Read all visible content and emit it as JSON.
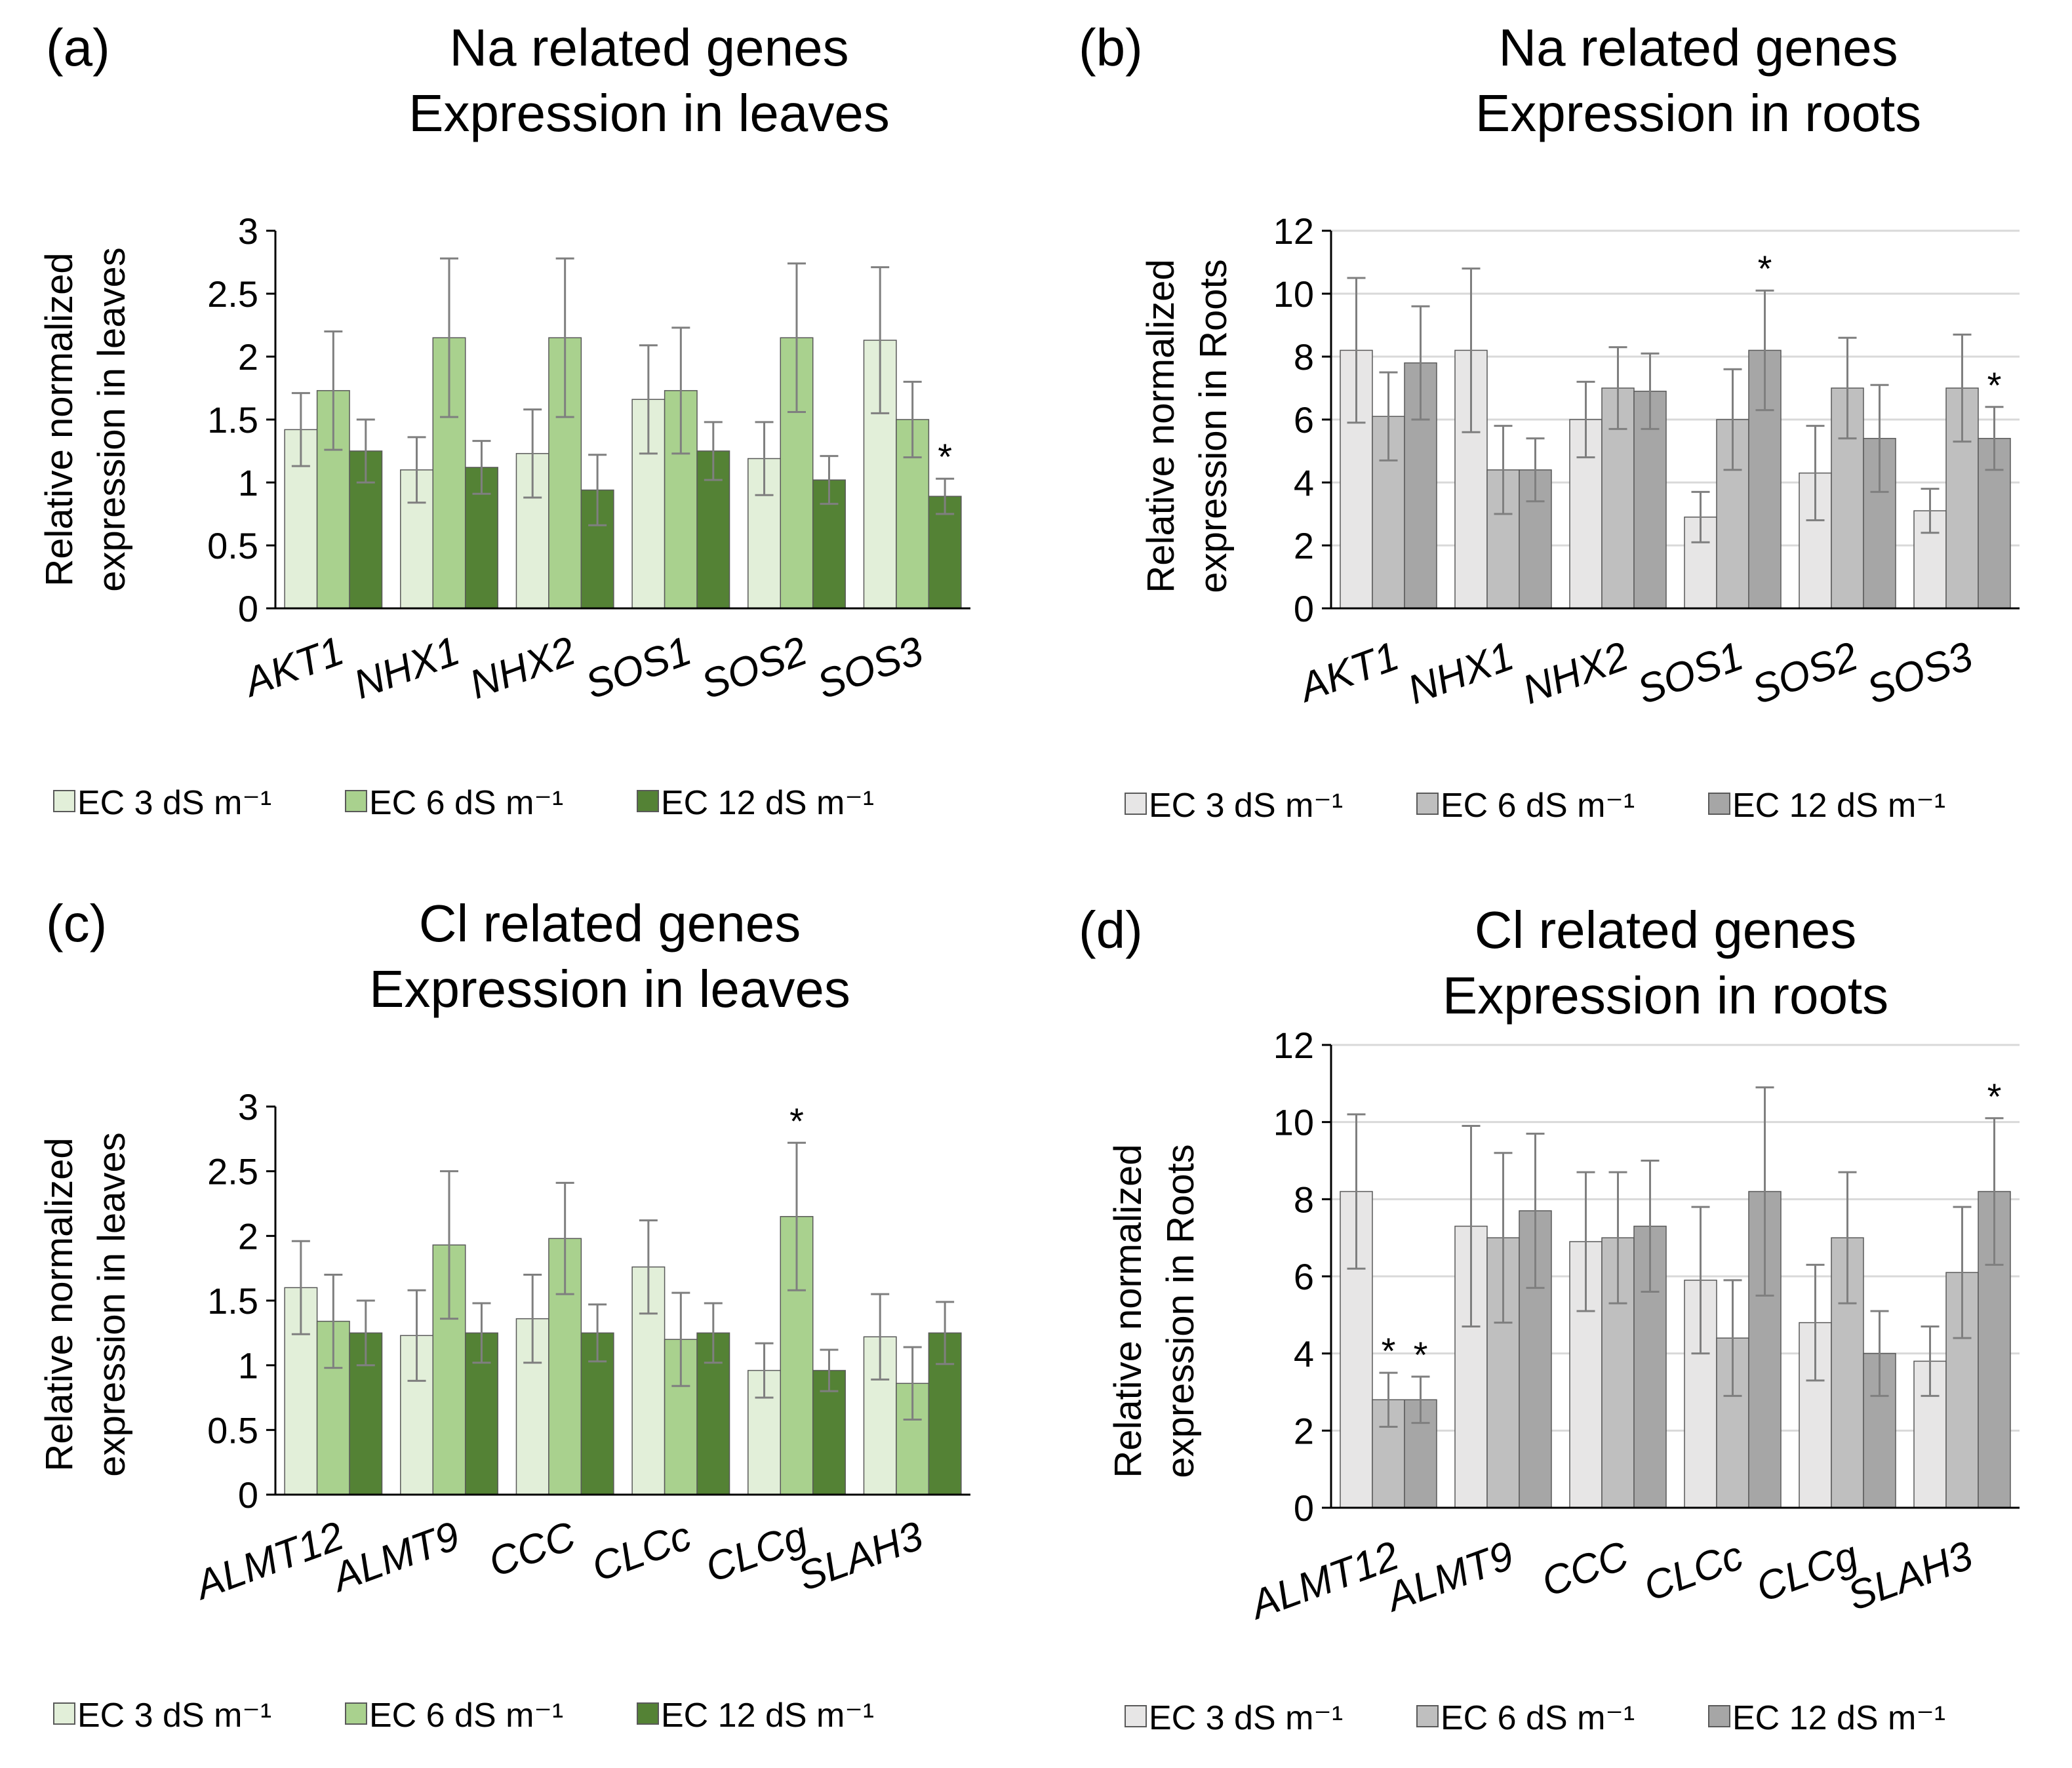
{
  "chart_data": [
    {
      "id": "a",
      "type": "bar",
      "panel_label": "(a)",
      "title": [
        "Na related genes",
        "Expression in leaves"
      ],
      "ylabel": [
        "Relative normalized",
        "expression in leaves"
      ],
      "ylim": [
        0,
        3
      ],
      "yticks": [
        0,
        0.5,
        1,
        1.5,
        2,
        2.5,
        3
      ],
      "grid": false,
      "categories": [
        "AKT1",
        "NHX1",
        "NHX2",
        "SOS1",
        "SOS2",
        "SOS3"
      ],
      "series": [
        {
          "name": "EC 3 dS m⁻¹",
          "color": "#e2efd9",
          "values": [
            1.42,
            1.1,
            1.23,
            1.66,
            1.19,
            2.13
          ],
          "errors": [
            0.29,
            0.26,
            0.35,
            0.43,
            0.29,
            0.58
          ],
          "stars": [
            false,
            false,
            false,
            false,
            false,
            false
          ]
        },
        {
          "name": "EC 6 dS m⁻¹",
          "color": "#a9d18e",
          "values": [
            1.73,
            2.15,
            2.15,
            1.73,
            2.15,
            1.5
          ],
          "errors": [
            0.47,
            0.63,
            0.63,
            0.5,
            0.59,
            0.3
          ],
          "stars": [
            false,
            false,
            false,
            false,
            false,
            false
          ]
        },
        {
          "name": "EC 12 dS m⁻¹",
          "color": "#548235",
          "values": [
            1.25,
            1.12,
            0.94,
            1.25,
            1.02,
            0.89
          ],
          "errors": [
            0.25,
            0.21,
            0.28,
            0.23,
            0.19,
            0.14
          ],
          "stars": [
            false,
            false,
            false,
            false,
            false,
            true
          ]
        }
      ],
      "star_text": "*"
    },
    {
      "id": "b",
      "type": "bar",
      "panel_label": "(b)",
      "title": [
        "Na related genes",
        "Expression in roots"
      ],
      "ylabel": [
        "Relative normalized",
        "expression in Roots"
      ],
      "ylim": [
        0,
        12
      ],
      "yticks": [
        0,
        2,
        4,
        6,
        8,
        10,
        12
      ],
      "grid": true,
      "categories": [
        "AKT1",
        "NHX1",
        "NHX2",
        "SOS1",
        "SOS2",
        "SOS3"
      ],
      "series": [
        {
          "name": "EC 3 dS m⁻¹",
          "color": "#e7e6e6",
          "values": [
            8.2,
            8.2,
            6.0,
            2.9,
            4.3,
            3.1
          ],
          "errors": [
            2.3,
            2.6,
            1.2,
            0.8,
            1.5,
            0.7
          ],
          "stars": [
            false,
            false,
            false,
            false,
            false,
            false
          ]
        },
        {
          "name": "EC 6 dS m⁻¹",
          "color": "#bfbfbf",
          "values": [
            6.1,
            4.4,
            7.0,
            6.0,
            7.0,
            7.0
          ],
          "errors": [
            1.4,
            1.4,
            1.3,
            1.6,
            1.6,
            1.7
          ],
          "stars": [
            false,
            false,
            false,
            false,
            false,
            false
          ]
        },
        {
          "name": "EC 12 dS m⁻¹",
          "color": "#a6a6a6",
          "values": [
            7.8,
            4.4,
            6.9,
            8.2,
            5.4,
            5.4
          ],
          "errors": [
            1.8,
            1.0,
            1.2,
            1.9,
            1.7,
            1.0
          ],
          "stars": [
            false,
            false,
            false,
            true,
            false,
            true
          ]
        }
      ],
      "star_text": "*"
    },
    {
      "id": "c",
      "type": "bar",
      "panel_label": "(c)",
      "title": [
        "Cl related genes",
        "Expression in leaves"
      ],
      "ylabel": [
        "Relative normalized",
        "expression in leaves"
      ],
      "ylim": [
        0,
        3
      ],
      "yticks": [
        0,
        0.5,
        1,
        1.5,
        2,
        2.5,
        3
      ],
      "grid": false,
      "categories": [
        "ALMT12",
        "ALMT9",
        "CCC",
        "CLCc",
        "CLCg",
        "SLAH3"
      ],
      "series": [
        {
          "name": "EC 3 dS m⁻¹",
          "color": "#e2efd9",
          "values": [
            1.6,
            1.23,
            1.36,
            1.76,
            0.96,
            1.22
          ],
          "errors": [
            0.36,
            0.35,
            0.34,
            0.36,
            0.21,
            0.33
          ],
          "stars": [
            false,
            false,
            false,
            false,
            false,
            false
          ]
        },
        {
          "name": "EC 6 dS m⁻¹",
          "color": "#a9d18e",
          "values": [
            1.34,
            1.93,
            1.98,
            1.2,
            2.15,
            0.86
          ],
          "errors": [
            0.36,
            0.57,
            0.43,
            0.36,
            0.57,
            0.28
          ],
          "stars": [
            false,
            false,
            false,
            false,
            true,
            false
          ]
        },
        {
          "name": "EC 12 dS m⁻¹",
          "color": "#548235",
          "values": [
            1.25,
            1.25,
            1.25,
            1.25,
            0.96,
            1.25
          ],
          "errors": [
            0.25,
            0.23,
            0.22,
            0.23,
            0.16,
            0.24
          ],
          "stars": [
            false,
            false,
            false,
            false,
            false,
            false
          ]
        }
      ],
      "star_text": "*"
    },
    {
      "id": "d",
      "type": "bar",
      "panel_label": "(d)",
      "title": [
        "Cl related genes",
        "Expression in roots"
      ],
      "ylabel": [
        "Relative normalized",
        "expression in Roots"
      ],
      "ylim": [
        0,
        12
      ],
      "yticks": [
        0,
        2,
        4,
        6,
        8,
        10,
        12
      ],
      "grid": true,
      "categories": [
        "ALMT12",
        "ALMT9",
        "CCC",
        "CLCc",
        "CLCg",
        "SLAH3"
      ],
      "series": [
        {
          "name": "EC 3 dS m⁻¹",
          "color": "#e7e6e6",
          "values": [
            8.2,
            7.3,
            6.9,
            5.9,
            4.8,
            3.8
          ],
          "errors": [
            2.0,
            2.6,
            1.8,
            1.9,
            1.5,
            0.9
          ],
          "stars": [
            false,
            false,
            false,
            false,
            false,
            false
          ]
        },
        {
          "name": "EC 6 dS m⁻¹",
          "color": "#bfbfbf",
          "values": [
            2.8,
            7.0,
            7.0,
            4.4,
            7.0,
            6.1
          ],
          "errors": [
            0.7,
            2.2,
            1.7,
            1.5,
            1.7,
            1.7
          ],
          "stars": [
            true,
            false,
            false,
            false,
            false,
            false
          ]
        },
        {
          "name": "EC 12 dS m⁻¹",
          "color": "#a6a6a6",
          "values": [
            2.8,
            7.7,
            7.3,
            8.2,
            4.0,
            8.2
          ],
          "errors": [
            0.6,
            2.0,
            1.7,
            2.7,
            1.1,
            1.9
          ],
          "stars": [
            true,
            false,
            false,
            false,
            false,
            true
          ]
        }
      ],
      "star_text": "*"
    }
  ]
}
